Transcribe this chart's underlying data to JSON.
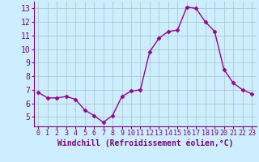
{
  "x": [
    0,
    1,
    2,
    3,
    4,
    5,
    6,
    7,
    8,
    9,
    10,
    11,
    12,
    13,
    14,
    15,
    16,
    17,
    18,
    19,
    20,
    21,
    22,
    23
  ],
  "y": [
    6.8,
    6.4,
    6.4,
    6.5,
    6.3,
    5.5,
    5.1,
    4.6,
    5.1,
    6.5,
    6.9,
    7.0,
    9.8,
    10.8,
    11.3,
    11.4,
    13.1,
    13.0,
    12.0,
    11.3,
    8.5,
    7.5,
    7.0,
    6.7
  ],
  "line_color": "#990099",
  "marker": "D",
  "markersize": 2.5,
  "linewidth": 1.0,
  "xlabel": "Windchill (Refroidissement éolien,°C)",
  "xlim": [
    -0.5,
    23.5
  ],
  "ylim": [
    4.3,
    13.5
  ],
  "yticks": [
    5,
    6,
    7,
    8,
    9,
    10,
    11,
    12,
    13
  ],
  "xticks": [
    0,
    1,
    2,
    3,
    4,
    5,
    6,
    7,
    8,
    9,
    10,
    11,
    12,
    13,
    14,
    15,
    16,
    17,
    18,
    19,
    20,
    21,
    22,
    23
  ],
  "bg_color": "#cceeff",
  "grid_color": "#aacccc",
  "line_border_color": "#800080",
  "tick_color": "#800080",
  "xlabel_fontsize": 7,
  "ytick_fontsize": 7,
  "xtick_fontsize": 6
}
